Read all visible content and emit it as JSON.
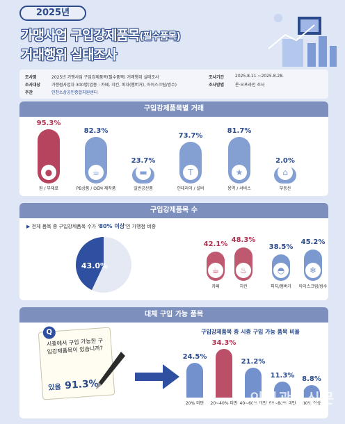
{
  "header": {
    "year_badge": "2025년",
    "title_line1_main": "가맹사업 구입강제품목",
    "title_line1_paren": "(필수품목)",
    "title_line2": "거래행위 실태조사"
  },
  "info": {
    "subject_key": "조사명",
    "subject_val": "2025년 가맹사업 구입강제품목(필수품목) 거래행위 실태조사",
    "target_key": "조사대상",
    "target_val": "가맹점사업자 300명(업종 : 카페, 치킨, 피자(햄버거), 아이스크림/빙수)",
    "host_key": "주관",
    "host_val": "인천소상공인종합지원센터",
    "period_key": "조사기간",
    "period_val": "2025.8.11.~2025.8.28.",
    "method_key": "조사방법",
    "method_val": "온·오프라인 조사"
  },
  "section1": {
    "header": "구입강제품목별 거래",
    "items": [
      {
        "pct": "95.3%",
        "label": "원 / 부재료",
        "value": 95.3,
        "color": "#b0304d",
        "icon": "coffee-beans-icon",
        "glyph": "●"
      },
      {
        "pct": "82.3%",
        "label": "PB상품 / OEM 제작품",
        "value": 82.3,
        "color": "#5b7fc4",
        "icon": "cup-package-icon",
        "glyph": "☕"
      },
      {
        "pct": "23.7%",
        "label": "일반공산품",
        "value": 23.7,
        "color": "#5b7fc4",
        "icon": "container-icon",
        "glyph": "▬"
      },
      {
        "pct": "73.7%",
        "label": "인테리어 / 설비",
        "value": 73.7,
        "color": "#5b7fc4",
        "icon": "paint-roller-icon",
        "glyph": "T"
      },
      {
        "pct": "81.7%",
        "label": "용역 / 서비스",
        "value": 81.7,
        "color": "#5b7fc4",
        "icon": "service-stars-icon",
        "glyph": "★"
      },
      {
        "pct": "2.0%",
        "label": "부동산",
        "value": 2.0,
        "color": "#5b7fc4",
        "icon": "house-icon",
        "glyph": "⌂"
      }
    ]
  },
  "section2": {
    "header": "구입강제품목 수",
    "desc_prefix": "전체 품목 중 구입강제품목 수가 '",
    "desc_highlight": "80% 이상",
    "desc_suffix": "'인 가맹점 비중",
    "pie_label": "43.0%",
    "pie_value": 43.0,
    "items": [
      {
        "pct": "42.1%",
        "label": "카페",
        "value": 42.1,
        "color": "#b0304d",
        "icon": "coffee-cup-icon",
        "glyph": "☕"
      },
      {
        "pct": "48.3%",
        "label": "치킨",
        "value": 48.3,
        "color": "#b0304d",
        "icon": "chicken-icon",
        "glyph": "♨"
      },
      {
        "pct": "38.5%",
        "label": "피자/햄버거",
        "value": 38.5,
        "color": "#5b7fc4",
        "icon": "burger-icon",
        "glyph": "◓"
      },
      {
        "pct": "45.2%",
        "label": "아이스크림/빙수",
        "value": 45.2,
        "color": "#5b7fc4",
        "icon": "shaved-ice-icon",
        "glyph": "❄"
      }
    ]
  },
  "section3": {
    "header": "대체 구입 가능 품목",
    "q_badge": "Q",
    "q_text": "시중에서 구입 가능한 구입강제품목이 있습니까?",
    "a_prefix": "있음",
    "a_value": "91.3%",
    "chart_title": "구입강제품목 중 시중 구입 가능 품목 비율",
    "bars": [
      {
        "pct": "24.5%",
        "label": "20% 미만",
        "value": 24.5,
        "color": "#5b7fc4"
      },
      {
        "pct": "34.3%",
        "label": "20~40% 미만",
        "value": 34.3,
        "color": "#b0304d"
      },
      {
        "pct": "21.2%",
        "label": "40~60% 미만",
        "value": 21.2,
        "color": "#5b7fc4"
      },
      {
        "pct": "11.3%",
        "label": "60~80% 미만",
        "value": 11.3,
        "color": "#5b7fc4"
      },
      {
        "pct": "8.8%",
        "label": "80% 이상",
        "value": 8.8,
        "color": "#5b7fc4"
      }
    ]
  },
  "watermark": {
    "main": "인천광역신문",
    "sub": "incheon metropolitan newspaper"
  }
}
